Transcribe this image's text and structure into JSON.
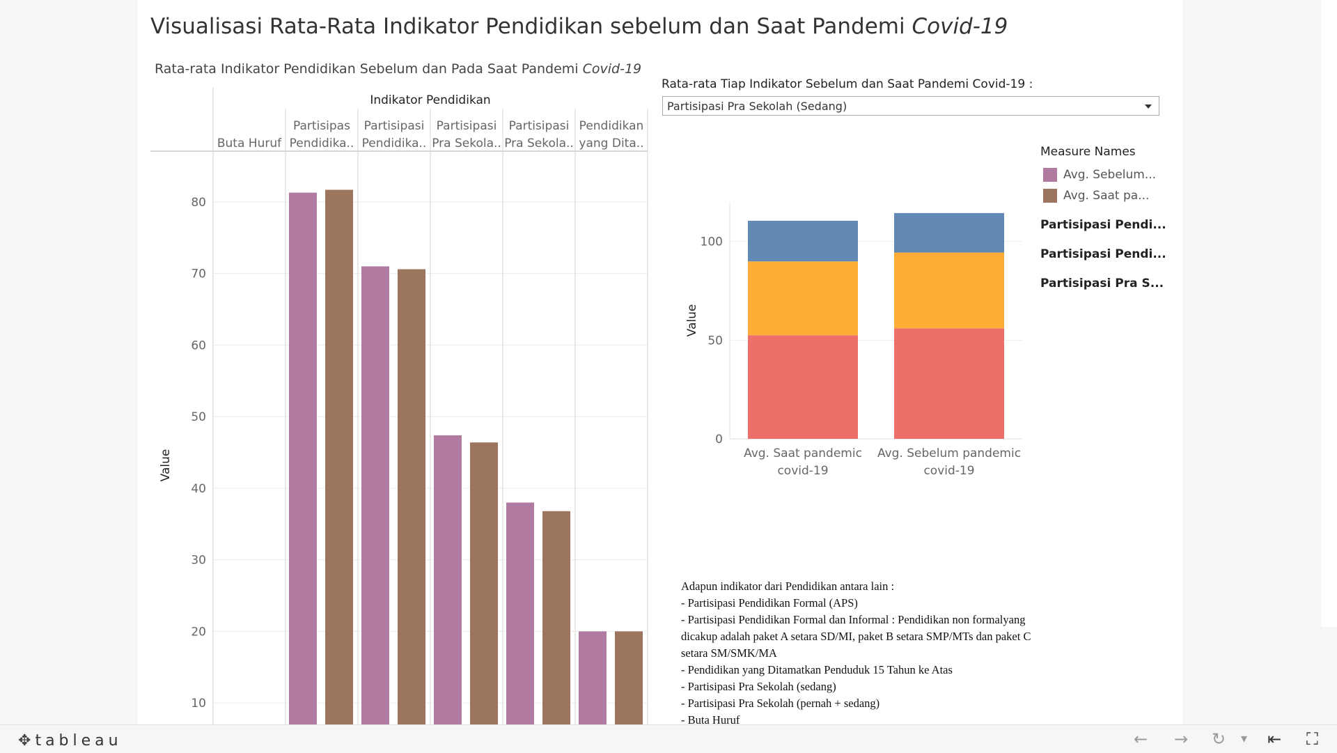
{
  "dashboard": {
    "title_main": "Visualisasi Rata-Rata Indikator Pendidikan sebelum dan Saat Pandemi ",
    "title_italic": "Covid-19",
    "subtitle_main": "Rata-rata Indikator Pendidikan Sebelum dan Pada Saat Pandemi ",
    "subtitle_italic": "Covid-19"
  },
  "chart_data": [
    {
      "type": "bar",
      "header": "Indikator Pendidikan",
      "ylabel": "Value",
      "yticks": [
        10,
        20,
        30,
        40,
        50,
        60,
        70,
        80
      ],
      "ylim": [
        7,
        87
      ],
      "categories": [
        [
          "",
          "Buta Huruf"
        ],
        [
          "Partisipas",
          "Pendidika.."
        ],
        [
          "Partisipasi",
          "Pendidika.."
        ],
        [
          "Partisipasi",
          "Pra Sekola.."
        ],
        [
          "Partisipasi",
          "Pra Sekola.."
        ],
        [
          "Pendidikan",
          "yang Dita.."
        ]
      ],
      "series": [
        {
          "color": "#b07aa1",
          "values": [
            null,
            81.3,
            71.0,
            47.4,
            38.0,
            20.0
          ]
        },
        {
          "color": "#9c755f",
          "values": [
            null,
            81.7,
            70.6,
            46.4,
            36.8,
            20.0
          ]
        }
      ]
    },
    {
      "type": "bar",
      "stacked": true,
      "ylabel": "Value",
      "yticks": [
        0,
        50,
        100
      ],
      "ylim": [
        0,
        120
      ],
      "categories": [
        [
          "Avg. Saat pandemic",
          "covid-19"
        ],
        [
          "Avg. Sebelum pandemic",
          "covid-19"
        ]
      ],
      "series": [
        {
          "color": "#ed6f6a",
          "values": [
            52.5,
            56.0
          ]
        },
        {
          "color": "#feae36",
          "values": [
            37.4,
            38.4
          ]
        },
        {
          "color": "#6189b4",
          "values": [
            20.6,
            20.0
          ]
        }
      ]
    }
  ],
  "filter": {
    "label": "Rata-rata Tiap Indikator Sebelum dan Saat Pandemi Covid-19 :",
    "value": "Partisipasi Pra Sekolah (Sedang)"
  },
  "legend": {
    "title": "Measure Names",
    "items": [
      {
        "label": "Avg. Sebelum...",
        "color": "#b07aa1"
      },
      {
        "label": "Avg. Saat pa...",
        "color": "#9c755f"
      }
    ],
    "bold_items": [
      "Partisipasi Pendi...",
      "Partisipasi Pendi...",
      "Partisipasi Pra S..."
    ]
  },
  "notes": [
    "Adapun indikator dari Pendidikan antara lain :",
    "- Partisipasi Pendidikan Formal (APS)",
    "- Partisipasi Pendidikan Formal dan Informal : Pendidikan non formalyang dicakup adalah paket A setara SD/MI, paket B setara SMP/MTs dan paket C setara SM/SMK/MA",
    "- Pendidikan yang Ditamatkan Penduduk 15 Tahun ke Atas",
    "- Partisipasi Pra Sekolah (sedang)",
    "- Partisipasi Pra Sekolah (pernah + sedang)",
    "- Buta Huruf"
  ],
  "toolbar": {
    "logo_text": "tableau",
    "logo_icon": "tableau-plus-icon",
    "undo_icon": "←",
    "redo_icon": "→",
    "revert_icon": "↻",
    "dropdown_icon": "▾",
    "reset_icon": "⇤",
    "fullscreen_icon": "⛶"
  }
}
